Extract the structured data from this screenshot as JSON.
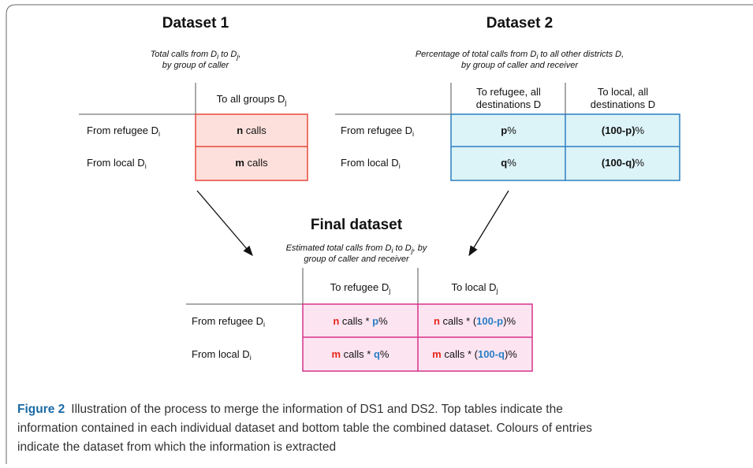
{
  "dataset1": {
    "title": "Dataset 1",
    "caption": [
      [
        "Total calls from D",
        "i",
        " to D",
        "j",
        ","
      ],
      [
        "by group of caller"
      ]
    ],
    "column_headers": [
      [
        [
          "To all groups D",
          "j"
        ]
      ]
    ],
    "row_headers": [
      [
        "From refugee D",
        "i"
      ],
      [
        "From local D",
        "i"
      ]
    ],
    "cells": [
      [
        [
          "n",
          " calls"
        ]
      ],
      [
        [
          "m",
          " calls"
        ]
      ]
    ]
  },
  "dataset2": {
    "title": "Dataset 2",
    "caption": [
      [
        "Percentage of total calls from D",
        "i",
        " to all other districts D,"
      ],
      [
        "by group of caller and receiver"
      ]
    ],
    "column_headers": [
      [
        [
          "To refugee, all"
        ],
        [
          "destinations D"
        ]
      ],
      [
        [
          "To local, all"
        ],
        [
          "destinations D"
        ]
      ]
    ],
    "row_headers": [
      [
        "From refugee D",
        "i"
      ],
      [
        "From local D",
        "i"
      ]
    ],
    "cells": [
      [
        [
          "p",
          "%"
        ],
        [
          "(100-p)",
          "%"
        ]
      ],
      [
        [
          "q",
          "%"
        ],
        [
          "(100-q)",
          "%"
        ]
      ]
    ]
  },
  "final_dataset": {
    "title": "Final dataset",
    "caption": [
      [
        "Estimated total calls from D",
        "i",
        " to D",
        "j",
        ", by"
      ],
      [
        "group of caller and receiver"
      ]
    ],
    "column_headers": [
      [
        [
          "To refugee D",
          "j"
        ]
      ],
      [
        [
          "To local D",
          "j"
        ]
      ]
    ],
    "row_headers": [
      [
        "From refugee D",
        "i"
      ],
      [
        "From local D",
        "i"
      ]
    ],
    "cells": [
      [
        [
          "n",
          " calls * ",
          "p",
          "%"
        ],
        [
          "n",
          " calls * (",
          "100-p",
          ")%"
        ]
      ],
      [
        [
          "m",
          " calls * ",
          "q",
          "%"
        ],
        [
          "m",
          " calls * (",
          "100-q",
          ")%"
        ]
      ]
    ]
  },
  "figure_caption": {
    "label": "Figure 2",
    "lines": [
      "Illustration of the process to merge the information of DS1 and DS2. Top tables indicate the",
      "information contained in each individual dataset and bottom table the combined dataset. Colours of entries",
      "indicate the dataset from which the information is extracted"
    ]
  }
}
